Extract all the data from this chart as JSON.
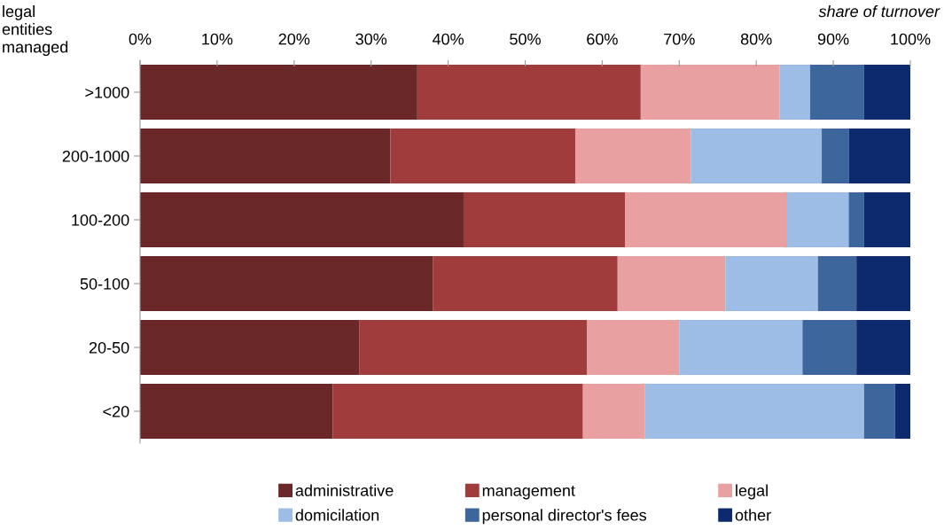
{
  "chart_data": {
    "type": "bar",
    "orientation": "horizontal",
    "stacked": true,
    "ylabel": "legal\nentities\nmanaged",
    "xlabel": "share of turnover",
    "categories": [
      ">1000",
      "200-1000",
      "100-200",
      "50-100",
      "20-50",
      "<20"
    ],
    "series": [
      {
        "name": "administrative",
        "color": "#6b2828",
        "values": [
          36,
          32.5,
          42,
          38,
          28.5,
          25
        ]
      },
      {
        "name": "management",
        "color": "#a03c3c",
        "values": [
          29,
          24,
          21,
          24,
          29.5,
          32.5
        ]
      },
      {
        "name": "legal",
        "color": "#e8a0a0",
        "values": [
          18,
          15,
          21,
          14,
          12,
          8
        ]
      },
      {
        "name": "domicilation",
        "color": "#9dbde6",
        "values": [
          4,
          17,
          8,
          12,
          16,
          28.5
        ]
      },
      {
        "name": "personal director's fees",
        "color": "#3d679c",
        "values": [
          7,
          3.5,
          2,
          5,
          7,
          4
        ]
      },
      {
        "name": "other",
        "color": "#0d2a6e",
        "values": [
          6,
          8,
          6,
          7,
          7,
          2
        ]
      }
    ],
    "xlim": [
      0,
      100
    ],
    "xticks": [
      {
        "value": 0,
        "label": "0%"
      },
      {
        "value": 10,
        "label": "10%"
      },
      {
        "value": 20,
        "label": "20%"
      },
      {
        "value": 30,
        "label": "30%"
      },
      {
        "value": 40,
        "label": "40%"
      },
      {
        "value": 50,
        "label": "50%"
      },
      {
        "value": 60,
        "label": "60%"
      },
      {
        "value": 70,
        "label": "70%"
      },
      {
        "value": 80,
        "label": "80%"
      },
      {
        "value": 90,
        "label": "90%"
      },
      {
        "value": 100,
        "label": "100%"
      }
    ],
    "grid": false,
    "legend": "bottom"
  }
}
